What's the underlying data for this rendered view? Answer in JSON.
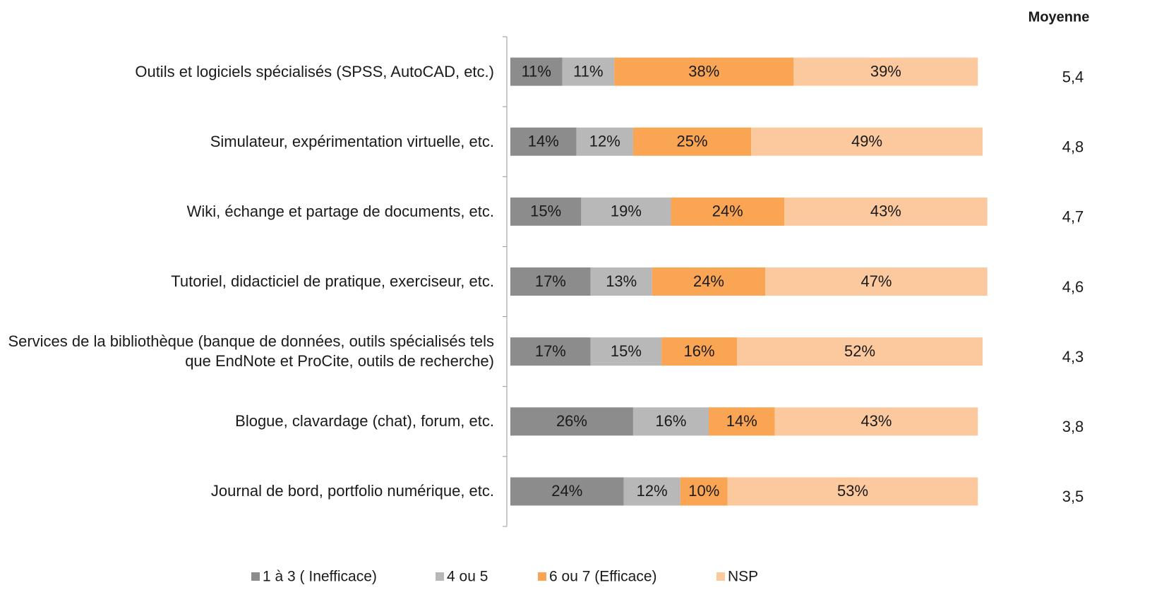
{
  "chart_data": {
    "type": "bar",
    "orientation": "horizontal",
    "stacked": true,
    "categories": [
      "Outils et logiciels spécialisés (SPSS, AutoCAD, etc.)",
      "Simulateur, expérimentation virtuelle, etc.",
      "Wiki, échange et partage de documents, etc.",
      "Tutoriel, didacticiel de pratique, exerciseur, etc.",
      "Services de la bibliothèque (banque de données, outils spécialisés tels que EndNote et ProCite, outils de recherche)",
      "Blogue, clavardage (chat), forum, etc.",
      "Journal de bord, portfolio numérique, etc."
    ],
    "series": [
      {
        "name": "1 à 3 ( Inefficace)",
        "color": "#8c8c8c",
        "values": [
          11,
          14,
          15,
          17,
          17,
          26,
          24
        ],
        "value_labels": [
          "11%",
          "14%",
          "15%",
          "17%",
          "17%",
          "26%",
          "24%"
        ]
      },
      {
        "name": "4 ou 5",
        "color": "#b8b8b8",
        "values": [
          11,
          12,
          19,
          13,
          15,
          16,
          12
        ],
        "value_labels": [
          "11%",
          "12%",
          "19%",
          "13%",
          "15%",
          "16%",
          "12%"
        ]
      },
      {
        "name": "6 ou 7 (Efficace)",
        "color": "#f9a553",
        "values": [
          38,
          25,
          24,
          24,
          16,
          14,
          10
        ],
        "value_labels": [
          "38%",
          "25%",
          "24%",
          "24%",
          "16%",
          "14%",
          "10%"
        ]
      },
      {
        "name": "NSP",
        "color": "#fcc99e",
        "values": [
          39,
          49,
          43,
          47,
          52,
          43,
          53
        ],
        "value_labels": [
          "39%",
          "49%",
          "43%",
          "47%",
          "52%",
          "43%",
          "53%"
        ]
      }
    ],
    "xlim": [
      0,
      100
    ],
    "legend": "bottom",
    "moyenne": {
      "title": "Moyenne",
      "values": [
        5.4,
        4.8,
        4.7,
        4.6,
        4.3,
        3.8,
        3.5
      ],
      "value_labels": [
        "5,4",
        "4,8",
        "4,7",
        "4,6",
        "4,3",
        "3,8",
        "3,5"
      ]
    }
  }
}
